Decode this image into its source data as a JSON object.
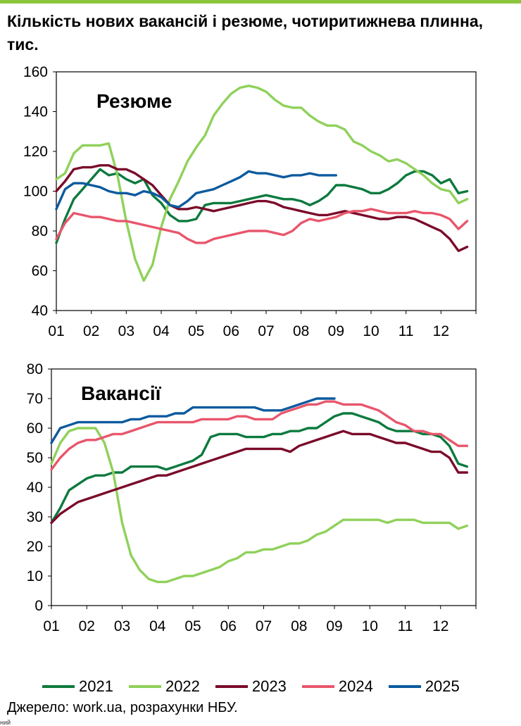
{
  "title": "Кількість нових вакансій і резюме, чотиритижнева плинна, тис.",
  "legend": [
    {
      "label": "2021",
      "color": "#0c7a3e"
    },
    {
      "label": "2022",
      "color": "#8fd15a"
    },
    {
      "label": "2023",
      "color": "#7a0a2a"
    },
    {
      "label": "2024",
      "color": "#e8566c"
    },
    {
      "label": "2025",
      "color": "#0c5a9e"
    }
  ],
  "source": "Джерело: work.ua, розрахунки НБУ.",
  "edge_fragment": "ний",
  "chart_data": [
    {
      "type": "line",
      "title": "Резюме",
      "xlabel": "",
      "ylabel": "",
      "categories": [
        "01",
        "02",
        "03",
        "04",
        "05",
        "06",
        "07",
        "08",
        "09",
        "10",
        "11",
        "12"
      ],
      "xlim": [
        1,
        13
      ],
      "ylim": [
        40,
        160
      ],
      "yticks": [
        "40",
        "60",
        "80",
        "100",
        "120",
        "140",
        "160"
      ],
      "grid": false,
      "series": [
        {
          "name": "2021",
          "color": "#0c7a3e",
          "x": [
            1.0,
            1.25,
            1.5,
            1.75,
            2.0,
            2.25,
            2.5,
            2.75,
            3.0,
            3.25,
            3.5,
            3.75,
            4.0,
            4.25,
            4.5,
            4.75,
            5.0,
            5.25,
            5.5,
            5.75,
            6.0,
            6.25,
            6.5,
            6.75,
            7.0,
            7.25,
            7.5,
            7.75,
            8.0,
            8.25,
            8.5,
            8.75,
            9.0,
            9.25,
            9.5,
            9.75,
            10.0,
            10.25,
            10.5,
            10.75,
            11.0,
            11.25,
            11.5,
            11.75,
            12.0,
            12.25,
            12.5,
            12.75
          ],
          "y": [
            74,
            86,
            96,
            101,
            106,
            111,
            108,
            109,
            106,
            104,
            106,
            98,
            94,
            88,
            85,
            85,
            86,
            93,
            94,
            94,
            94,
            95,
            96,
            97,
            98,
            97,
            96,
            96,
            95,
            93,
            95,
            98,
            103,
            103,
            102,
            101,
            99,
            99,
            101,
            104,
            108,
            110,
            110,
            108,
            104,
            106,
            99,
            100
          ]
        },
        {
          "name": "2022",
          "color": "#8fd15a",
          "x": [
            1.0,
            1.25,
            1.5,
            1.75,
            2.0,
            2.25,
            2.5,
            2.75,
            3.0,
            3.25,
            3.5,
            3.75,
            4.0,
            4.25,
            4.5,
            4.75,
            5.0,
            5.25,
            5.5,
            5.75,
            6.0,
            6.25,
            6.5,
            6.75,
            7.0,
            7.25,
            7.5,
            7.75,
            8.0,
            8.25,
            8.5,
            8.75,
            9.0,
            9.25,
            9.5,
            9.75,
            10.0,
            10.25,
            10.5,
            10.75,
            11.0,
            11.25,
            11.5,
            11.75,
            12.0,
            12.25,
            12.5,
            12.75
          ],
          "y": [
            106,
            109,
            119,
            123,
            123,
            123,
            124,
            108,
            85,
            66,
            55,
            63,
            82,
            96,
            105,
            115,
            122,
            128,
            138,
            144,
            149,
            152,
            153,
            152,
            150,
            146,
            143,
            142,
            142,
            138,
            135,
            133,
            133,
            131,
            125,
            123,
            120,
            118,
            115,
            116,
            114,
            111,
            108,
            104,
            101,
            100,
            94,
            96
          ]
        },
        {
          "name": "2023",
          "color": "#7a0a2a",
          "x": [
            1.0,
            1.25,
            1.5,
            1.75,
            2.0,
            2.25,
            2.5,
            2.75,
            3.0,
            3.25,
            3.5,
            3.75,
            4.0,
            4.25,
            4.5,
            4.75,
            5.0,
            5.25,
            5.5,
            5.75,
            6.0,
            6.25,
            6.5,
            6.75,
            7.0,
            7.25,
            7.5,
            7.75,
            8.0,
            8.25,
            8.5,
            8.75,
            9.0,
            9.25,
            9.5,
            9.75,
            10.0,
            10.25,
            10.5,
            10.75,
            11.0,
            11.25,
            11.5,
            11.75,
            12.0,
            12.25,
            12.5,
            12.75
          ],
          "y": [
            100,
            105,
            111,
            112,
            112,
            113,
            113,
            111,
            111,
            109,
            106,
            103,
            98,
            93,
            91,
            91,
            92,
            91,
            90,
            91,
            92,
            93,
            94,
            95,
            95,
            94,
            92,
            91,
            90,
            89,
            88,
            88,
            89,
            90,
            89,
            88,
            87,
            86,
            86,
            87,
            87,
            86,
            84,
            82,
            80,
            76,
            70,
            72
          ]
        },
        {
          "name": "2024",
          "color": "#e8566c",
          "x": [
            1.0,
            1.25,
            1.5,
            1.75,
            2.0,
            2.25,
            2.5,
            2.75,
            3.0,
            3.25,
            3.5,
            3.75,
            4.0,
            4.25,
            4.5,
            4.75,
            5.0,
            5.25,
            5.5,
            5.75,
            6.0,
            6.25,
            6.5,
            6.75,
            7.0,
            7.25,
            7.5,
            7.75,
            8.0,
            8.25,
            8.5,
            8.75,
            9.0,
            9.25,
            9.5,
            9.75,
            10.0,
            10.25,
            10.5,
            10.75,
            11.0,
            11.25,
            11.5,
            11.75,
            12.0,
            12.25,
            12.5,
            12.75
          ],
          "y": [
            76,
            84,
            89,
            88,
            87,
            87,
            86,
            85,
            85,
            84,
            83,
            82,
            81,
            80,
            79,
            76,
            74,
            74,
            76,
            77,
            78,
            79,
            80,
            80,
            80,
            79,
            78,
            80,
            84,
            86,
            85,
            86,
            87,
            89,
            90,
            90,
            91,
            90,
            89,
            89,
            89,
            90,
            89,
            89,
            88,
            86,
            81,
            85
          ]
        },
        {
          "name": "2025",
          "color": "#0c5a9e",
          "x": [
            1.0,
            1.25,
            1.5,
            1.75,
            2.0,
            2.25,
            2.5,
            2.75,
            3.0,
            3.25,
            3.5,
            3.75,
            4.0,
            4.25,
            4.5,
            4.75,
            5.0,
            5.25,
            5.5,
            5.75,
            6.0,
            6.25,
            6.5,
            6.75,
            7.0,
            7.25,
            7.5,
            7.75,
            8.0,
            8.25,
            8.5,
            8.75,
            9.0
          ],
          "y": [
            91,
            101,
            104,
            104,
            103,
            102,
            100,
            99,
            99,
            98,
            100,
            99,
            97,
            93,
            92,
            95,
            99,
            100,
            101,
            103,
            105,
            107,
            110,
            109,
            109,
            108,
            107,
            108,
            108,
            109,
            108,
            108,
            108
          ]
        }
      ]
    },
    {
      "type": "line",
      "title": "Вакансії",
      "xlabel": "",
      "ylabel": "",
      "categories": [
        "01",
        "02",
        "03",
        "04",
        "05",
        "06",
        "07",
        "08",
        "09",
        "10",
        "11",
        "12"
      ],
      "xlim": [
        1,
        13
      ],
      "ylim": [
        0,
        80
      ],
      "yticks": [
        "0",
        "10",
        "20",
        "30",
        "40",
        "50",
        "60",
        "70",
        "80"
      ],
      "grid": false,
      "series": [
        {
          "name": "2021",
          "color": "#0c7a3e",
          "x": [
            1.0,
            1.25,
            1.5,
            1.75,
            2.0,
            2.25,
            2.5,
            2.75,
            3.0,
            3.25,
            3.5,
            3.75,
            4.0,
            4.25,
            4.5,
            4.75,
            5.0,
            5.25,
            5.5,
            5.75,
            6.0,
            6.25,
            6.5,
            6.75,
            7.0,
            7.25,
            7.5,
            7.75,
            8.0,
            8.25,
            8.5,
            8.75,
            9.0,
            9.25,
            9.5,
            9.75,
            10.0,
            10.25,
            10.5,
            10.75,
            11.0,
            11.25,
            11.5,
            11.75,
            12.0,
            12.25,
            12.5,
            12.75
          ],
          "y": [
            28,
            33,
            39,
            41,
            43,
            44,
            44,
            45,
            45,
            47,
            47,
            47,
            47,
            46,
            47,
            48,
            49,
            51,
            57,
            58,
            58,
            58,
            57,
            57,
            57,
            58,
            58,
            59,
            59,
            60,
            60,
            62,
            64,
            65,
            65,
            64,
            63,
            62,
            60,
            59,
            59,
            59,
            58,
            58,
            57,
            54,
            48,
            47
          ]
        },
        {
          "name": "2022",
          "color": "#8fd15a",
          "x": [
            1.0,
            1.25,
            1.5,
            1.75,
            2.0,
            2.25,
            2.5,
            2.75,
            3.0,
            3.25,
            3.5,
            3.75,
            4.0,
            4.25,
            4.5,
            4.75,
            5.0,
            5.25,
            5.5,
            5.75,
            6.0,
            6.25,
            6.5,
            6.75,
            7.0,
            7.25,
            7.5,
            7.75,
            8.0,
            8.25,
            8.5,
            8.75,
            9.0,
            9.25,
            9.5,
            9.75,
            10.0,
            10.25,
            10.5,
            10.75,
            11.0,
            11.25,
            11.5,
            11.75,
            12.0,
            12.25,
            12.5,
            12.75
          ],
          "y": [
            48,
            55,
            59,
            60,
            60,
            60,
            55,
            45,
            28,
            17,
            12,
            9,
            8,
            8,
            9,
            10,
            10,
            11,
            12,
            13,
            15,
            16,
            18,
            18,
            19,
            19,
            20,
            21,
            21,
            22,
            24,
            25,
            27,
            29,
            29,
            29,
            29,
            29,
            28,
            29,
            29,
            29,
            28,
            28,
            28,
            28,
            26,
            27
          ]
        },
        {
          "name": "2023",
          "color": "#7a0a2a",
          "x": [
            1.0,
            1.25,
            1.5,
            1.75,
            2.0,
            2.25,
            2.5,
            2.75,
            3.0,
            3.25,
            3.5,
            3.75,
            4.0,
            4.25,
            4.5,
            4.75,
            5.0,
            5.25,
            5.5,
            5.75,
            6.0,
            6.25,
            6.5,
            6.75,
            7.0,
            7.25,
            7.5,
            7.75,
            8.0,
            8.25,
            8.5,
            8.75,
            9.0,
            9.25,
            9.5,
            9.75,
            10.0,
            10.25,
            10.5,
            10.75,
            11.0,
            11.25,
            11.5,
            11.75,
            12.0,
            12.25,
            12.5,
            12.75
          ],
          "y": [
            28,
            31,
            33,
            35,
            36,
            37,
            38,
            39,
            40,
            41,
            42,
            43,
            44,
            44,
            45,
            46,
            47,
            48,
            49,
            50,
            51,
            52,
            53,
            53,
            53,
            53,
            53,
            52,
            54,
            55,
            56,
            57,
            58,
            59,
            58,
            58,
            58,
            57,
            56,
            55,
            55,
            54,
            53,
            52,
            52,
            50,
            45,
            45
          ]
        },
        {
          "name": "2024",
          "color": "#e8566c",
          "x": [
            1.0,
            1.25,
            1.5,
            1.75,
            2.0,
            2.25,
            2.5,
            2.75,
            3.0,
            3.25,
            3.5,
            3.75,
            4.0,
            4.25,
            4.5,
            4.75,
            5.0,
            5.25,
            5.5,
            5.75,
            6.0,
            6.25,
            6.5,
            6.75,
            7.0,
            7.25,
            7.5,
            7.75,
            8.0,
            8.25,
            8.5,
            8.75,
            9.0,
            9.25,
            9.5,
            9.75,
            10.0,
            10.25,
            10.5,
            10.75,
            11.0,
            11.25,
            11.5,
            11.75,
            12.0,
            12.25,
            12.5,
            12.75
          ],
          "y": [
            46,
            50,
            53,
            55,
            56,
            56,
            57,
            58,
            58,
            59,
            60,
            61,
            62,
            62,
            62,
            62,
            62,
            63,
            63,
            63,
            63,
            64,
            64,
            63,
            63,
            63,
            65,
            66,
            67,
            68,
            68,
            69,
            69,
            68,
            68,
            68,
            67,
            66,
            64,
            62,
            61,
            59,
            59,
            58,
            58,
            56,
            54,
            54
          ]
        },
        {
          "name": "2025",
          "color": "#0c5a9e",
          "x": [
            1.0,
            1.25,
            1.5,
            1.75,
            2.0,
            2.25,
            2.5,
            2.75,
            3.0,
            3.25,
            3.5,
            3.75,
            4.0,
            4.25,
            4.5,
            4.75,
            5.0,
            5.25,
            5.5,
            5.75,
            6.0,
            6.25,
            6.5,
            6.75,
            7.0,
            7.25,
            7.5,
            7.75,
            8.0,
            8.25,
            8.5,
            8.75,
            9.0
          ],
          "y": [
            55,
            60,
            61,
            62,
            62,
            62,
            62,
            62,
            62,
            63,
            63,
            64,
            64,
            64,
            65,
            65,
            67,
            67,
            67,
            67,
            67,
            67,
            67,
            67,
            66,
            66,
            66,
            67,
            68,
            69,
            70,
            70,
            70
          ]
        }
      ]
    }
  ]
}
